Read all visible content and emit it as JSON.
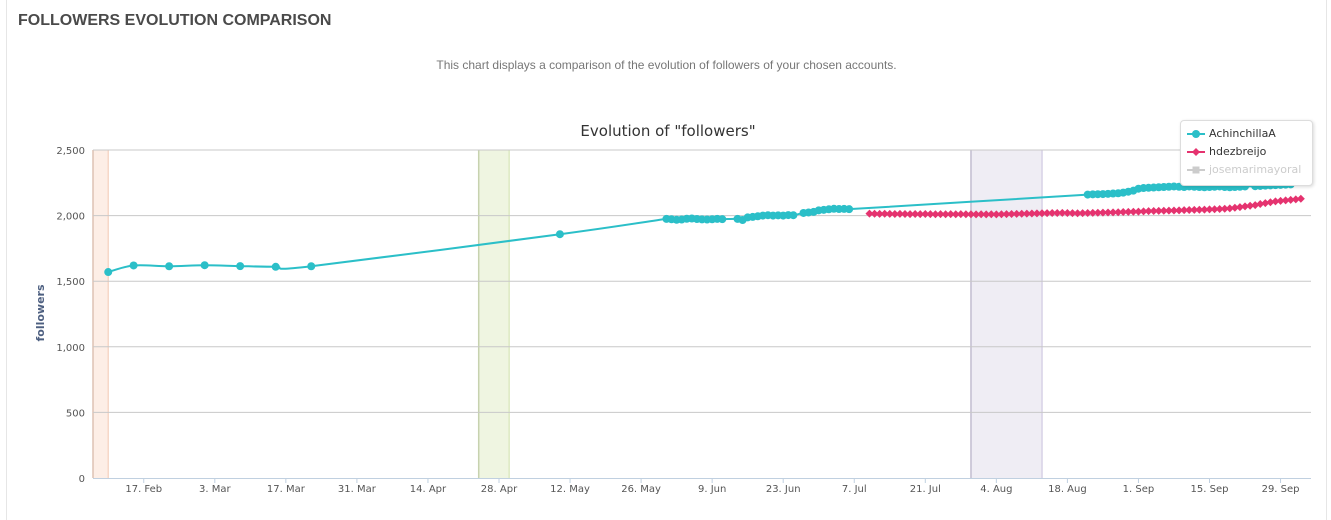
{
  "panel": {
    "title": "FOLLOWERS EVOLUTION COMPARISON",
    "description": "This chart displays a comparison of the evolution of followers of your chosen accounts."
  },
  "chart_data": {
    "type": "line",
    "title": "Evolution of \"followers\"",
    "xlabel": "",
    "ylabel": "followers",
    "x_type": "date",
    "xlim": [
      "2013-02-07",
      "2013-10-05"
    ],
    "ylim": [
      0,
      2500
    ],
    "yticks": [
      0,
      500,
      1000,
      1500,
      2000,
      2500
    ],
    "ytick_labels": [
      "0",
      "500",
      "1,000",
      "1,500",
      "2,000",
      "2,500"
    ],
    "xticks": [
      "2013-02-17",
      "2013-03-03",
      "2013-03-17",
      "2013-03-31",
      "2013-04-14",
      "2013-04-28",
      "2013-05-12",
      "2013-05-26",
      "2013-06-09",
      "2013-06-23",
      "2013-07-07",
      "2013-07-21",
      "2013-08-04",
      "2013-08-18",
      "2013-09-01",
      "2013-09-15",
      "2013-09-29"
    ],
    "xtick_labels": [
      "17. Feb",
      "3. Mar",
      "17. Mar",
      "31. Mar",
      "14. Apr",
      "28. Apr",
      "12. May",
      "26. May",
      "9. Jun",
      "23. Jun",
      "7. Jul",
      "21. Jul",
      "4. Aug",
      "18. Aug",
      "1. Sep",
      "15. Sep",
      "29. Sep"
    ],
    "grid": true,
    "legend_position": "top-right",
    "plot_bands": [
      {
        "from": "2013-02-07",
        "to": "2013-02-10",
        "color": "#fdeee6"
      },
      {
        "from": "2013-04-24",
        "to": "2013-04-30",
        "color": "#eff5e1"
      },
      {
        "from": "2013-07-30",
        "to": "2013-08-13",
        "color": "#efedf4"
      }
    ],
    "series": [
      {
        "name": "AchinchillaA",
        "color": "#2bbfc8",
        "marker": "circle",
        "visible": true,
        "points": [
          [
            "2013-02-10",
            1570
          ],
          [
            "2013-02-15",
            1620
          ],
          [
            "2013-02-22",
            1614
          ],
          [
            "2013-03-01",
            1622
          ],
          [
            "2013-03-08",
            1615
          ],
          [
            "2013-03-15",
            1610
          ],
          [
            "2013-03-22",
            1614
          ],
          [
            "2013-05-10",
            1858
          ],
          [
            "2013-05-31",
            1975
          ],
          [
            "2013-06-01",
            1972
          ],
          [
            "2013-06-02",
            1968
          ],
          [
            "2013-06-03",
            1970
          ],
          [
            "2013-06-04",
            1976
          ],
          [
            "2013-06-05",
            1978
          ],
          [
            "2013-06-06",
            1974
          ],
          [
            "2013-06-07",
            1971
          ],
          [
            "2013-06-08",
            1970
          ],
          [
            "2013-06-09",
            1972
          ],
          [
            "2013-06-10",
            1975
          ],
          [
            "2013-06-11",
            1973
          ],
          [
            "2013-06-14",
            1975
          ],
          [
            "2013-06-15",
            1966
          ],
          [
            "2013-06-16",
            1986
          ],
          [
            "2013-06-17",
            1990
          ],
          [
            "2013-06-18",
            1995
          ],
          [
            "2013-06-19",
            2000
          ],
          [
            "2013-06-20",
            2003
          ],
          [
            "2013-06-21",
            2000
          ],
          [
            "2013-06-22",
            2002
          ],
          [
            "2013-06-23",
            2000
          ],
          [
            "2013-06-24",
            2004
          ],
          [
            "2013-06-25",
            2003
          ],
          [
            "2013-06-27",
            2020
          ],
          [
            "2013-06-28",
            2024
          ],
          [
            "2013-06-29",
            2028
          ],
          [
            "2013-06-30",
            2040
          ],
          [
            "2013-07-01",
            2044
          ],
          [
            "2013-07-02",
            2048
          ],
          [
            "2013-07-03",
            2052
          ],
          [
            "2013-07-04",
            2050
          ],
          [
            "2013-07-05",
            2051
          ],
          [
            "2013-07-06",
            2049
          ],
          [
            "2013-08-22",
            2160
          ],
          [
            "2013-08-23",
            2162
          ],
          [
            "2013-08-24",
            2163
          ],
          [
            "2013-08-25",
            2164
          ],
          [
            "2013-08-26",
            2166
          ],
          [
            "2013-08-27",
            2168
          ],
          [
            "2013-08-28",
            2170
          ],
          [
            "2013-08-29",
            2175
          ],
          [
            "2013-08-30",
            2182
          ],
          [
            "2013-08-31",
            2190
          ],
          [
            "2013-09-01",
            2205
          ],
          [
            "2013-09-02",
            2210
          ],
          [
            "2013-09-03",
            2212
          ],
          [
            "2013-09-04",
            2214
          ],
          [
            "2013-09-05",
            2216
          ],
          [
            "2013-09-06",
            2218
          ],
          [
            "2013-09-07",
            2220
          ],
          [
            "2013-09-08",
            2222
          ],
          [
            "2013-09-09",
            2220
          ],
          [
            "2013-09-10",
            2218
          ],
          [
            "2013-09-11",
            2222
          ],
          [
            "2013-09-12",
            2220
          ],
          [
            "2013-09-13",
            2218
          ],
          [
            "2013-09-14",
            2216
          ],
          [
            "2013-09-15",
            2218
          ],
          [
            "2013-09-16",
            2220
          ],
          [
            "2013-09-17",
            2222
          ],
          [
            "2013-09-18",
            2218
          ],
          [
            "2013-09-19",
            2216
          ],
          [
            "2013-09-20",
            2218
          ],
          [
            "2013-09-21",
            2220
          ],
          [
            "2013-09-22",
            2222
          ],
          [
            "2013-09-24",
            2224
          ],
          [
            "2013-09-25",
            2226
          ],
          [
            "2013-09-26",
            2228
          ],
          [
            "2013-09-27",
            2230
          ],
          [
            "2013-09-28",
            2232
          ],
          [
            "2013-09-29",
            2234
          ],
          [
            "2013-09-30",
            2236
          ],
          [
            "2013-10-01",
            2238
          ]
        ]
      },
      {
        "name": "hdezbreijo",
        "color": "#e5336f",
        "marker": "diamond",
        "visible": true,
        "points": [
          [
            "2013-07-10",
            2015
          ],
          [
            "2013-07-11",
            2014
          ],
          [
            "2013-07-12",
            2013
          ],
          [
            "2013-07-13",
            2014
          ],
          [
            "2013-07-14",
            2013
          ],
          [
            "2013-07-15",
            2012
          ],
          [
            "2013-07-16",
            2013
          ],
          [
            "2013-07-17",
            2012
          ],
          [
            "2013-07-18",
            2011
          ],
          [
            "2013-07-19",
            2012
          ],
          [
            "2013-07-20",
            2011
          ],
          [
            "2013-07-21",
            2012
          ],
          [
            "2013-07-22",
            2011
          ],
          [
            "2013-07-23",
            2010
          ],
          [
            "2013-07-24",
            2011
          ],
          [
            "2013-07-25",
            2010
          ],
          [
            "2013-07-26",
            2011
          ],
          [
            "2013-07-27",
            2010
          ],
          [
            "2013-07-28",
            2011
          ],
          [
            "2013-07-29",
            2010
          ],
          [
            "2013-07-30",
            2010
          ],
          [
            "2013-07-31",
            2009
          ],
          [
            "2013-08-01",
            2010
          ],
          [
            "2013-08-02",
            2009
          ],
          [
            "2013-08-03",
            2010
          ],
          [
            "2013-08-04",
            2009
          ],
          [
            "2013-08-05",
            2010
          ],
          [
            "2013-08-06",
            2011
          ],
          [
            "2013-08-07",
            2012
          ],
          [
            "2013-08-08",
            2013
          ],
          [
            "2013-08-09",
            2014
          ],
          [
            "2013-08-10",
            2015
          ],
          [
            "2013-08-11",
            2016
          ],
          [
            "2013-08-12",
            2017
          ],
          [
            "2013-08-13",
            2018
          ],
          [
            "2013-08-14",
            2019
          ],
          [
            "2013-08-15",
            2020
          ],
          [
            "2013-08-16",
            2020
          ],
          [
            "2013-08-17",
            2021
          ],
          [
            "2013-08-18",
            2020
          ],
          [
            "2013-08-19",
            2019
          ],
          [
            "2013-08-20",
            2018
          ],
          [
            "2013-08-21",
            2019
          ],
          [
            "2013-08-22",
            2020
          ],
          [
            "2013-08-23",
            2021
          ],
          [
            "2013-08-24",
            2022
          ],
          [
            "2013-08-25",
            2023
          ],
          [
            "2013-08-26",
            2024
          ],
          [
            "2013-08-27",
            2025
          ],
          [
            "2013-08-28",
            2026
          ],
          [
            "2013-08-29",
            2027
          ],
          [
            "2013-08-30",
            2028
          ],
          [
            "2013-08-31",
            2029
          ],
          [
            "2013-09-01",
            2030
          ],
          [
            "2013-09-02",
            2032
          ],
          [
            "2013-09-03",
            2034
          ],
          [
            "2013-09-04",
            2035
          ],
          [
            "2013-09-05",
            2036
          ],
          [
            "2013-09-06",
            2037
          ],
          [
            "2013-09-07",
            2038
          ],
          [
            "2013-09-08",
            2039
          ],
          [
            "2013-09-09",
            2040
          ],
          [
            "2013-09-10",
            2042
          ],
          [
            "2013-09-11",
            2043
          ],
          [
            "2013-09-12",
            2044
          ],
          [
            "2013-09-13",
            2045
          ],
          [
            "2013-09-14",
            2046
          ],
          [
            "2013-09-15",
            2047
          ],
          [
            "2013-09-16",
            2048
          ],
          [
            "2013-09-17",
            2050
          ],
          [
            "2013-09-18",
            2052
          ],
          [
            "2013-09-19",
            2055
          ],
          [
            "2013-09-20",
            2060
          ],
          [
            "2013-09-21",
            2065
          ],
          [
            "2013-09-22",
            2070
          ],
          [
            "2013-09-23",
            2075
          ],
          [
            "2013-09-24",
            2080
          ],
          [
            "2013-09-25",
            2088
          ],
          [
            "2013-09-26",
            2095
          ],
          [
            "2013-09-27",
            2102
          ],
          [
            "2013-09-28",
            2108
          ],
          [
            "2013-09-29",
            2112
          ],
          [
            "2013-09-30",
            2116
          ],
          [
            "2013-10-01",
            2120
          ],
          [
            "2013-10-02",
            2124
          ],
          [
            "2013-10-03",
            2128
          ]
        ]
      },
      {
        "name": "josemarimayoral",
        "color": "#cccccc",
        "marker": "square",
        "visible": false,
        "points": []
      }
    ]
  }
}
